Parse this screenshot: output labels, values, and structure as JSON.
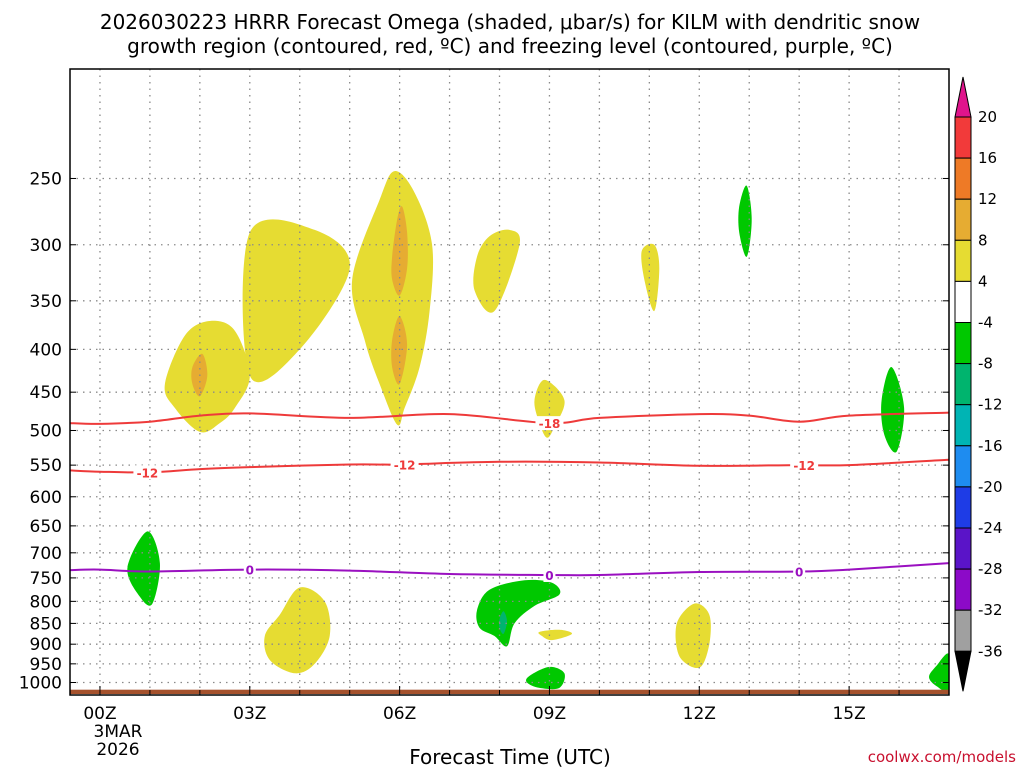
{
  "chart_data": {
    "type": "contour",
    "title_line1": "2026030223 HRRR Forecast Omega (shaded, μbar/s) for KILM with dendritic snow",
    "title_line2": "growth region (contoured, red, ºC) and freezing level (contoured, purple, ºC)",
    "xlabel": "Forecast Time (UTC)",
    "x_ticks": [
      "00Z",
      "03Z",
      "06Z",
      "09Z",
      "12Z",
      "15Z"
    ],
    "x_tick_hours": [
      0,
      3,
      6,
      9,
      12,
      15
    ],
    "x_range_hours": [
      -0.6,
      17
    ],
    "date_label_line1": "3MAR",
    "date_label_line2": "2026",
    "y_ticks": [
      250,
      300,
      350,
      400,
      450,
      500,
      550,
      600,
      650,
      700,
      750,
      800,
      850,
      900,
      950,
      1000
    ],
    "y_range_mb": [
      185,
      1035
    ],
    "y_scale": "log",
    "colorbar": {
      "labels": [
        "20",
        "16",
        "12",
        "8",
        "4",
        "-4",
        "-8",
        "-12",
        "-16",
        "-20",
        "-24",
        "-28",
        "-32",
        "-36"
      ],
      "colors": [
        "#f23a3a",
        "#ee7a26",
        "#e6ac32",
        "#e6dc32",
        "#ffffff",
        "#00c800",
        "#00b46e",
        "#00b4b4",
        "#1e8cf0",
        "#1e3ce6",
        "#5a14c8",
        "#8c0ac8",
        "#a0a0a0"
      ],
      "top_arrow_color": "#e0148c",
      "bottom_arrow_color": "#000000"
    },
    "contours": {
      "dgz_upper": {
        "color": "#ee3a3a",
        "label": "-18",
        "label_hours": [
          9
        ],
        "points": [
          [
            -0.6,
            490
          ],
          [
            0,
            491
          ],
          [
            1,
            488
          ],
          [
            2,
            480
          ],
          [
            3,
            477
          ],
          [
            5,
            483
          ],
          [
            7,
            478
          ],
          [
            9,
            490
          ],
          [
            10,
            483
          ],
          [
            12,
            478
          ],
          [
            13,
            480
          ],
          [
            14,
            488
          ],
          [
            15,
            480
          ],
          [
            17,
            476
          ]
        ]
      },
      "dgz_lower": {
        "color": "#ee3a3a",
        "label": "-12",
        "label_hours": [
          0.95,
          6.1,
          14.1
        ],
        "points": [
          [
            -0.6,
            558
          ],
          [
            0,
            560
          ],
          [
            1,
            561
          ],
          [
            2,
            556
          ],
          [
            3,
            553
          ],
          [
            5,
            549
          ],
          [
            6,
            549
          ],
          [
            8,
            545
          ],
          [
            10,
            546
          ],
          [
            12,
            551
          ],
          [
            14,
            550
          ],
          [
            15,
            550
          ],
          [
            17,
            542
          ]
        ]
      },
      "freezing_level": {
        "color": "#9a10c0",
        "label": "0",
        "label_hours": [
          3,
          9,
          14
        ],
        "points": [
          [
            -0.6,
            734
          ],
          [
            0,
            733
          ],
          [
            1,
            737
          ],
          [
            3,
            733
          ],
          [
            5,
            735
          ],
          [
            7,
            742
          ],
          [
            9,
            744
          ],
          [
            10,
            744
          ],
          [
            12,
            738
          ],
          [
            14,
            737
          ],
          [
            15,
            733
          ],
          [
            17,
            720
          ]
        ]
      }
    },
    "shaded_regions": [
      {
        "name": "omega-pos-1",
        "level": 4,
        "points": [
          [
            1.3,
            440
          ],
          [
            1.7,
            385
          ],
          [
            2.2,
            370
          ],
          [
            2.7,
            380
          ],
          [
            3.0,
            430
          ],
          [
            2.7,
            470
          ],
          [
            2.4,
            490
          ],
          [
            2.0,
            502
          ],
          [
            1.5,
            470
          ]
        ]
      },
      {
        "name": "omega-pos-2",
        "level": 4,
        "points": [
          [
            3.0,
            290
          ],
          [
            4.3,
            288
          ],
          [
            5.0,
            320
          ],
          [
            4.0,
            400
          ],
          [
            3.0,
            430
          ]
        ]
      },
      {
        "name": "omega-pos-3",
        "level": 4,
        "points": [
          [
            5.05,
            330
          ],
          [
            5.6,
            265
          ],
          [
            5.9,
            245
          ],
          [
            6.3,
            260
          ],
          [
            6.65,
            300
          ],
          [
            6.6,
            360
          ],
          [
            6.4,
            420
          ],
          [
            6.1,
            470
          ],
          [
            5.95,
            492
          ],
          [
            5.6,
            440
          ],
          [
            5.3,
            390
          ]
        ]
      },
      {
        "name": "omega-pos-4",
        "level": 4,
        "points": [
          [
            7.5,
            340
          ],
          [
            7.55,
            310
          ],
          [
            7.8,
            293
          ],
          [
            8.2,
            288
          ],
          [
            8.4,
            300
          ],
          [
            7.9,
            360
          ]
        ]
      },
      {
        "name": "omega-pos-5",
        "level": 4,
        "points": [
          [
            10.85,
            305
          ],
          [
            11.1,
            300
          ],
          [
            11.2,
            320
          ],
          [
            11.1,
            360
          ],
          [
            10.9,
            330
          ]
        ]
      },
      {
        "name": "omega-pos-6",
        "level": 4,
        "points": [
          [
            8.7,
            460
          ],
          [
            8.9,
            435
          ],
          [
            9.3,
            460
          ],
          [
            9.1,
            495
          ],
          [
            8.95,
            510
          ],
          [
            8.8,
            490
          ]
        ]
      },
      {
        "name": "omega-pos-7",
        "level": 4,
        "points": [
          [
            3.3,
            880
          ],
          [
            3.6,
            830
          ],
          [
            4.0,
            770
          ],
          [
            4.5,
            800
          ],
          [
            4.6,
            880
          ],
          [
            4.3,
            950
          ],
          [
            3.9,
            975
          ],
          [
            3.4,
            940
          ]
        ]
      },
      {
        "name": "omega-pos-8",
        "level": 4,
        "points": [
          [
            8.8,
            870
          ],
          [
            9.2,
            865
          ],
          [
            9.45,
            875
          ],
          [
            9.05,
            890
          ],
          [
            8.85,
            880
          ]
        ]
      },
      {
        "name": "omega-pos-9",
        "level": 4,
        "points": [
          [
            11.55,
            850
          ],
          [
            11.9,
            805
          ],
          [
            12.2,
            830
          ],
          [
            12.2,
            900
          ],
          [
            12.0,
            960
          ],
          [
            11.6,
            930
          ]
        ]
      },
      {
        "name": "omega-pos-10",
        "level": 8,
        "points": [
          [
            1.85,
            420
          ],
          [
            2.05,
            405
          ],
          [
            2.15,
            430
          ],
          [
            2.0,
            455
          ],
          [
            1.85,
            440
          ]
        ]
      },
      {
        "name": "omega-pos-11",
        "level": 8,
        "points": [
          [
            5.85,
            310
          ],
          [
            5.95,
            280
          ],
          [
            6.05,
            270
          ],
          [
            6.15,
            290
          ],
          [
            6.15,
            320
          ],
          [
            6.0,
            345
          ],
          [
            5.85,
            330
          ]
        ]
      },
      {
        "name": "omega-pos-12",
        "level": 8,
        "points": [
          [
            5.85,
            390
          ],
          [
            6.0,
            365
          ],
          [
            6.15,
            395
          ],
          [
            6.0,
            440
          ],
          [
            5.85,
            420
          ]
        ]
      },
      {
        "name": "omega-neg-1",
        "level": -4,
        "points": [
          [
            0.55,
            730
          ],
          [
            0.95,
            660
          ],
          [
            1.2,
            720
          ],
          [
            1.05,
            805
          ],
          [
            0.8,
            790
          ]
        ]
      },
      {
        "name": "omega-neg-2",
        "level": -4,
        "points": [
          [
            12.8,
            270
          ],
          [
            12.95,
            255
          ],
          [
            13.05,
            280
          ],
          [
            12.95,
            310
          ],
          [
            12.8,
            290
          ]
        ]
      },
      {
        "name": "omega-neg-3",
        "level": -4,
        "points": [
          [
            15.65,
            460
          ],
          [
            15.85,
            420
          ],
          [
            16.1,
            470
          ],
          [
            15.95,
            530
          ],
          [
            15.7,
            505
          ]
        ]
      },
      {
        "name": "omega-neg-4",
        "level": -4,
        "points": [
          [
            7.55,
            820
          ],
          [
            7.8,
            775
          ],
          [
            8.5,
            755
          ],
          [
            9.05,
            760
          ],
          [
            9.2,
            785
          ],
          [
            8.7,
            810
          ],
          [
            8.3,
            850
          ],
          [
            8.15,
            905
          ],
          [
            7.9,
            880
          ],
          [
            7.6,
            860
          ]
        ]
      },
      {
        "name": "omega-neg-5",
        "level": -4,
        "points": [
          [
            8.6,
            982
          ],
          [
            9.0,
            958
          ],
          [
            9.3,
            975
          ],
          [
            9.2,
            1015
          ],
          [
            8.8,
            1015
          ],
          [
            8.55,
            1000
          ]
        ]
      },
      {
        "name": "omega-neg-6",
        "level": -4,
        "points": [
          [
            16.6,
            985
          ],
          [
            16.75,
            955
          ],
          [
            17.0,
            925
          ],
          [
            17.0,
            1020
          ],
          [
            16.75,
            1010
          ]
        ]
      },
      {
        "name": "omega-neg-7",
        "level": -8,
        "points": [
          [
            8.0,
            840
          ],
          [
            8.08,
            822
          ],
          [
            8.15,
            845
          ],
          [
            8.08,
            875
          ],
          [
            8.0,
            860
          ]
        ]
      }
    ],
    "surface_terrain": {
      "color": "#a5522d",
      "top_mb": 1020
    }
  },
  "credit": "coolwx.com/models"
}
